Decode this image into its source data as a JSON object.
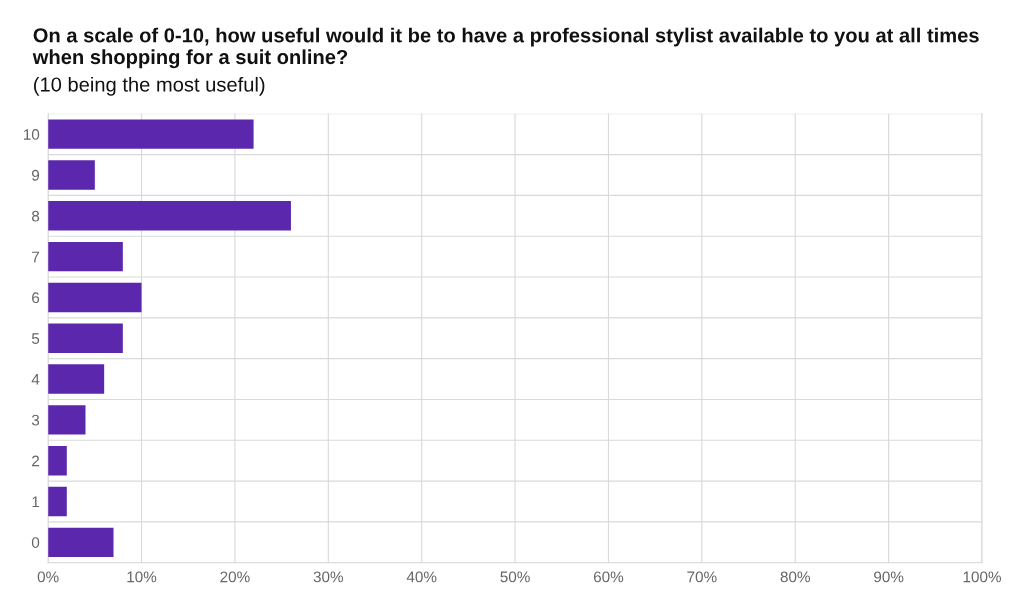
{
  "chart_data": {
    "type": "bar",
    "orientation": "horizontal",
    "title": "On a scale of 0-10, how useful would it be to have a professional stylist available to you at all times when shopping for a suit online?",
    "subtitle": "(10 being the most useful)",
    "categories": [
      "10",
      "9",
      "8",
      "7",
      "6",
      "5",
      "4",
      "3",
      "2",
      "1",
      "0"
    ],
    "values": [
      22,
      5,
      26,
      8,
      10,
      8,
      6,
      4,
      2,
      2,
      7
    ],
    "color": "#5b27ad",
    "xlim": [
      0,
      100
    ],
    "xticks": [
      {
        "value": 0,
        "label": "0%"
      },
      {
        "value": 10,
        "label": "10%"
      },
      {
        "value": 20,
        "label": "20%"
      },
      {
        "value": 30,
        "label": "30%"
      },
      {
        "value": 40,
        "label": "40%"
      },
      {
        "value": 50,
        "label": "50%"
      },
      {
        "value": 60,
        "label": "60%"
      },
      {
        "value": 70,
        "label": "70%"
      },
      {
        "value": 80,
        "label": "80%"
      },
      {
        "value": 90,
        "label": "90%"
      },
      {
        "value": 100,
        "label": "100%"
      }
    ],
    "grid": true
  }
}
